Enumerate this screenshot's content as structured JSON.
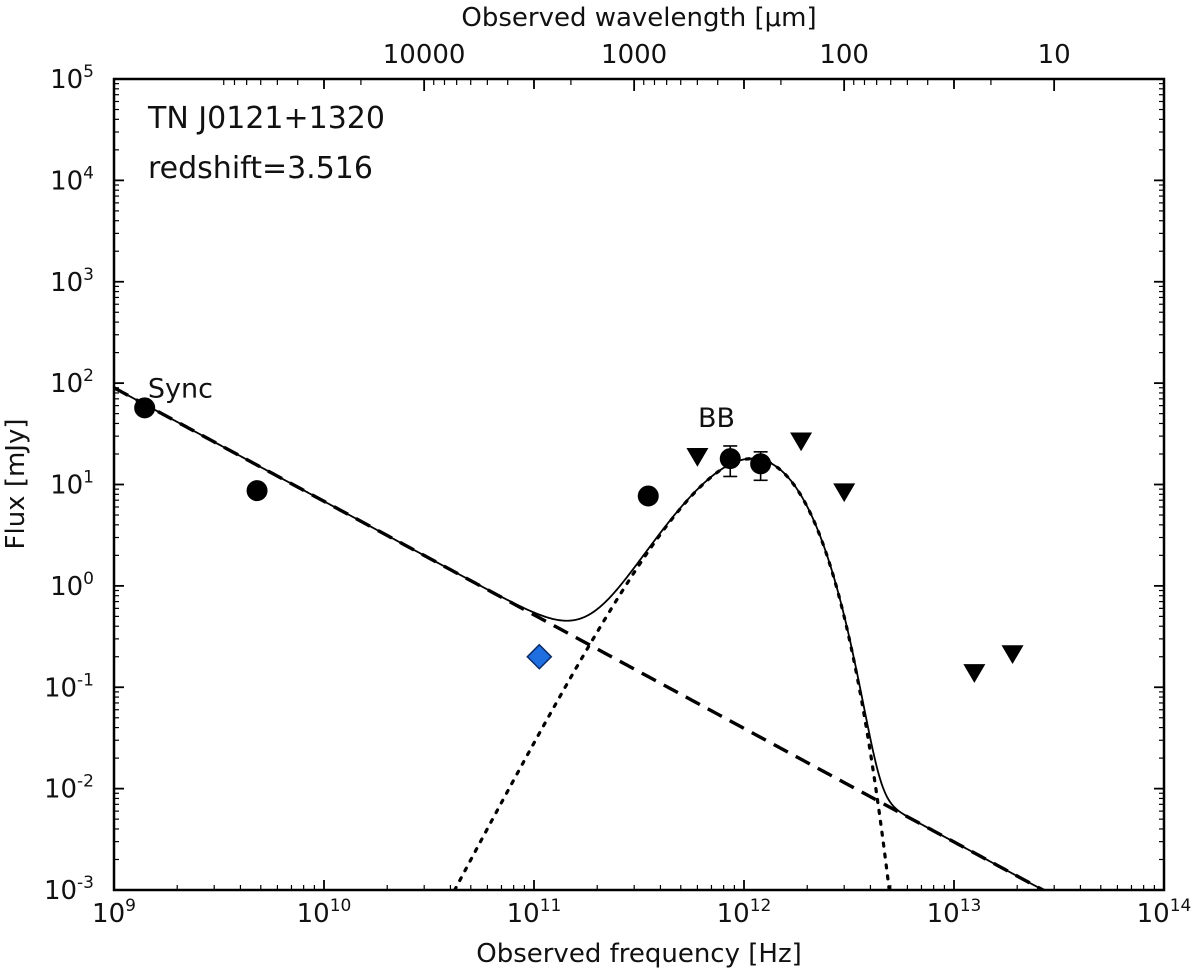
{
  "chart_data": {
    "type": "scatter",
    "title": "",
    "xlabel": "Observed frequency [Hz]",
    "ylabel": "Flux [mJy]",
    "top_xlabel": "Observed wavelength [μm]",
    "xscale": "log",
    "yscale": "log",
    "xlim": [
      1000000000.0,
      100000000000000.0
    ],
    "ylim": [
      0.001,
      100000
    ],
    "x_tick_exponents": [
      "9",
      "10",
      "11",
      "12",
      "13",
      "14"
    ],
    "y_tick_exponents": [
      "-3",
      "-2",
      "-1",
      "0",
      "1",
      "2",
      "3",
      "4",
      "5"
    ],
    "tick_base": "10",
    "top_ticks": [
      {
        "label": "10000",
        "wavelength_um": 10000
      },
      {
        "label": "1000",
        "wavelength_um": 1000
      },
      {
        "label": "100",
        "wavelength_um": 100
      },
      {
        "label": "10",
        "wavelength_um": 10
      }
    ],
    "annotations": {
      "source_name": "TN J0121+1320",
      "redshift_text": "redshift=3.516"
    },
    "region_labels": [
      {
        "text": "Sync",
        "x": 1450000000.0,
        "y": 72
      },
      {
        "text": "BB",
        "x": 740000000000.0,
        "y": 37
      }
    ],
    "series": [
      {
        "name": "detections",
        "marker": "circle",
        "color": "#000000",
        "points": [
          {
            "x": 1400000000.0,
            "y": 57
          },
          {
            "x": 4800000000.0,
            "y": 8.7
          },
          {
            "x": 350000000000.0,
            "y": 7.7
          },
          {
            "x": 860000000000.0,
            "y": 18,
            "y_err": 6
          },
          {
            "x": 1200000000000.0,
            "y": 16,
            "y_err": 5
          }
        ]
      },
      {
        "name": "upper limits",
        "marker": "triangle-down",
        "color": "#000000",
        "points": [
          {
            "x": 600000000000.0,
            "y": 19
          },
          {
            "x": 1870000000000.0,
            "y": 27
          },
          {
            "x": 3000000000000.0,
            "y": 8.5
          },
          {
            "x": 12500000000000.0,
            "y": 0.14
          },
          {
            "x": 19000000000000.0,
            "y": 0.215
          }
        ]
      },
      {
        "name": "mm point",
        "marker": "diamond",
        "color": "#1f6fe0",
        "points": [
          {
            "x": 106000000000.0,
            "y": 0.2
          }
        ]
      }
    ],
    "models": {
      "synchrotron": {
        "style": "dashed",
        "amplitude_at_1GHz": 90,
        "slope": -1.12
      },
      "blackbody": {
        "style": "dotted",
        "beta": 2.0,
        "temperature_obs_K": 10.6,
        "peak_mJy": 18
      },
      "total": {
        "style": "solid"
      }
    }
  }
}
